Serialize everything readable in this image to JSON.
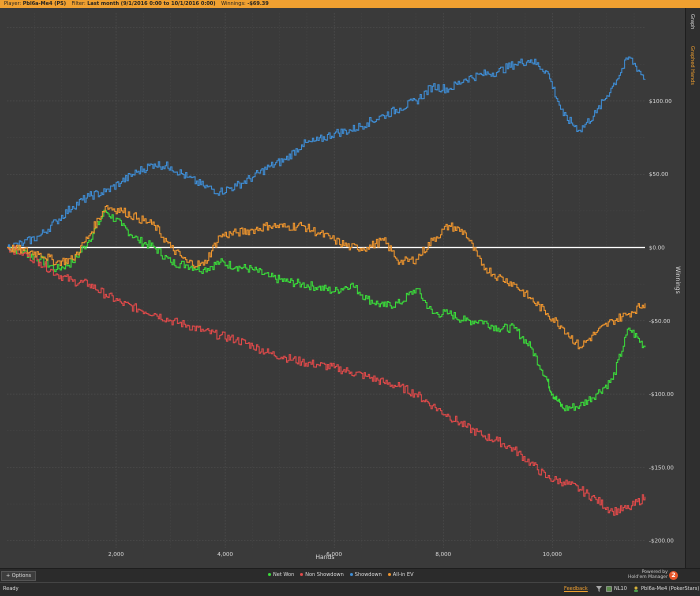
{
  "topbar": {
    "player_label": "Player:",
    "player_value": "Pbl6a-Me4 (PS)",
    "filter_label": "Filter:",
    "filter_value": "Last month (9/1/2016 0:00 to 10/1/2016 0:00)",
    "winnings_label": "Winnings:",
    "winnings_value": "-$69.39"
  },
  "right_tabs": {
    "graph": "Graph",
    "graphed_hands": "Graphed Hands"
  },
  "bottom": {
    "options_label": "Options",
    "brand_line1": "Powered by",
    "brand_line2": "Hold'em Manager",
    "brand_badge": "2"
  },
  "statusbar": {
    "status": "Ready",
    "feedback": "Feedback",
    "stake": "NL10",
    "player": "Pbl6a-Me4 (PokerStars)"
  },
  "colors": {
    "net_won": "#3adc3a",
    "non_showdown": "#e04a4a",
    "showdown": "#3f8ed6",
    "allin_ev": "#f0962e",
    "zero_line": "#ffffff",
    "accent": "#f0a030"
  },
  "chart_data": {
    "type": "line",
    "title": "",
    "xlabel": "Hands",
    "ylabel": "Winnings",
    "xlim": [
      0,
      11700
    ],
    "ylim": [
      -205,
      160
    ],
    "x_ticks": [
      2000,
      4000,
      6000,
      8000,
      10000
    ],
    "x_tick_labels": [
      "2,000",
      "4,000",
      "6,000",
      "8,000",
      "10,000"
    ],
    "y_ticks": [
      100,
      50,
      0,
      -50,
      -100,
      -150,
      -200
    ],
    "y_tick_labels": [
      "$100.00",
      "$50.00",
      "$0.00",
      "-$50.00",
      "-$100.00",
      "-$150.00",
      "-$200.00"
    ],
    "grid": true,
    "legend": "bottom",
    "series": [
      {
        "name": "Net Won",
        "color_key": "net_won",
        "x": [
          0,
          300,
          600,
          900,
          1200,
          1500,
          1800,
          2100,
          2400,
          2700,
          3000,
          3300,
          3600,
          3900,
          4200,
          4500,
          4800,
          5100,
          5400,
          5700,
          6000,
          6300,
          6600,
          6900,
          7200,
          7500,
          7800,
          8100,
          8400,
          8700,
          9000,
          9300,
          9600,
          9900,
          10000,
          10200,
          10500,
          10800,
          11100,
          11400,
          11700
        ],
        "y": [
          0,
          -3,
          -8,
          -15,
          -10,
          5,
          25,
          15,
          5,
          0,
          -10,
          -12,
          -15,
          -10,
          -13,
          -15,
          -20,
          -23,
          -25,
          -27,
          -30,
          -25,
          -35,
          -40,
          -38,
          -28,
          -45,
          -45,
          -50,
          -50,
          -55,
          -55,
          -68,
          -90,
          -100,
          -110,
          -108,
          -100,
          -90,
          -55,
          -68
        ]
      },
      {
        "name": "Non Showdown",
        "color_key": "non_showdown",
        "x": [
          0,
          300,
          600,
          900,
          1200,
          1500,
          1800,
          2100,
          2400,
          2700,
          3000,
          3300,
          3600,
          3900,
          4200,
          4500,
          4800,
          5100,
          5400,
          5700,
          6000,
          6300,
          6600,
          6900,
          7200,
          7500,
          7800,
          8100,
          8400,
          8700,
          9000,
          9300,
          9600,
          9900,
          10200,
          10500,
          10800,
          11100,
          11400,
          11700
        ],
        "y": [
          0,
          -4,
          -10,
          -18,
          -23,
          -25,
          -32,
          -38,
          -42,
          -45,
          -50,
          -53,
          -57,
          -60,
          -63,
          -67,
          -72,
          -75,
          -78,
          -80,
          -82,
          -85,
          -88,
          -92,
          -95,
          -100,
          -108,
          -115,
          -122,
          -128,
          -132,
          -138,
          -147,
          -157,
          -160,
          -165,
          -172,
          -180,
          -178,
          -170
        ]
      },
      {
        "name": "Showdown",
        "color_key": "showdown",
        "x": [
          0,
          300,
          600,
          900,
          1200,
          1500,
          1800,
          2100,
          2400,
          2700,
          3000,
          3300,
          3600,
          3900,
          4200,
          4500,
          4800,
          5100,
          5400,
          5700,
          6000,
          6300,
          6600,
          6900,
          7200,
          7500,
          7800,
          8100,
          8400,
          8700,
          9000,
          9300,
          9600,
          9900,
          10200,
          10500,
          10800,
          11100,
          11400,
          11700
        ],
        "y": [
          0,
          3,
          8,
          18,
          28,
          35,
          38,
          45,
          52,
          57,
          55,
          48,
          42,
          38,
          42,
          48,
          55,
          60,
          70,
          73,
          78,
          80,
          85,
          90,
          95,
          100,
          110,
          108,
          115,
          118,
          120,
          125,
          128,
          120,
          90,
          80,
          92,
          110,
          130,
          115
        ]
      },
      {
        "name": "All-in EV",
        "color_key": "allin_ev",
        "x": [
          0,
          300,
          600,
          900,
          1200,
          1500,
          1800,
          2100,
          2400,
          2700,
          3000,
          3300,
          3600,
          3900,
          4200,
          4500,
          4800,
          5100,
          5400,
          5700,
          6000,
          6300,
          6600,
          6900,
          7200,
          7500,
          7800,
          8100,
          8400,
          8700,
          9000,
          9300,
          9600,
          9900,
          10200,
          10500,
          10800,
          11100,
          11400,
          11700
        ],
        "y": [
          0,
          -2,
          -4,
          -10,
          -8,
          8,
          28,
          25,
          20,
          15,
          0,
          -10,
          -12,
          8,
          10,
          12,
          15,
          14,
          15,
          10,
          5,
          0,
          0,
          5,
          -10,
          -8,
          5,
          15,
          10,
          -12,
          -20,
          -25,
          -35,
          -45,
          -55,
          -68,
          -58,
          -50,
          -45,
          -38
        ]
      }
    ]
  }
}
